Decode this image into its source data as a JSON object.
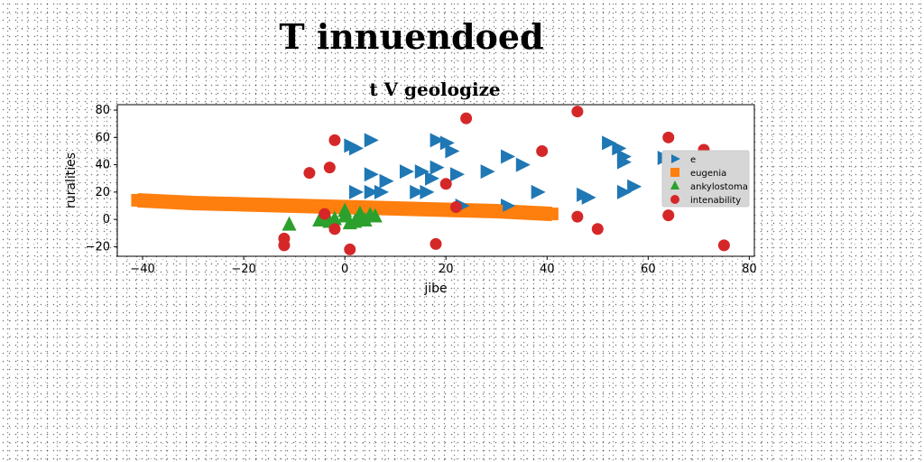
{
  "page_title": "T innuendoed",
  "chart_data": {
    "type": "scatter",
    "title": "t V geologize",
    "xlabel": "jibe",
    "ylabel": "ruralities",
    "xlim": [
      -45,
      81
    ],
    "ylim": [
      -27,
      84
    ],
    "xticks": [
      -40,
      -20,
      0,
      20,
      40,
      60,
      80
    ],
    "yticks": [
      -20,
      0,
      20,
      40,
      60,
      80
    ],
    "xtick_labels": [
      "−40",
      "−20",
      "0",
      "20",
      "40",
      "60",
      "80"
    ],
    "ytick_labels": [
      "−20",
      "0",
      "20",
      "40",
      "60",
      "80"
    ],
    "grid": false,
    "legend_position": "right",
    "series": [
      {
        "name": "e",
        "marker": "triangle-right",
        "color": "#1f77b4",
        "points": [
          [
            1,
            54
          ],
          [
            2,
            52
          ],
          [
            5,
            58
          ],
          [
            18,
            58
          ],
          [
            20,
            56
          ],
          [
            21,
            50
          ],
          [
            2,
            20
          ],
          [
            5,
            20
          ],
          [
            7,
            20
          ],
          [
            5,
            33
          ],
          [
            8,
            28
          ],
          [
            12,
            35
          ],
          [
            15,
            35
          ],
          [
            17,
            30
          ],
          [
            18,
            38
          ],
          [
            22,
            33
          ],
          [
            14,
            20
          ],
          [
            16,
            20
          ],
          [
            23,
            10
          ],
          [
            28,
            35
          ],
          [
            32,
            10
          ],
          [
            32,
            46
          ],
          [
            35,
            40
          ],
          [
            38,
            20
          ],
          [
            47,
            18
          ],
          [
            48,
            16
          ],
          [
            52,
            56
          ],
          [
            54,
            52
          ],
          [
            55,
            42
          ],
          [
            55,
            46
          ],
          [
            55,
            20
          ],
          [
            57,
            24
          ],
          [
            63,
            45
          ],
          [
            66,
            28
          ]
        ]
      },
      {
        "name": "eugenia",
        "marker": "square",
        "color": "#ff7f0e",
        "points": [
          [
            -41,
            14
          ],
          [
            -30,
            12
          ],
          [
            -20,
            11
          ],
          [
            -10,
            10
          ],
          [
            0,
            9
          ],
          [
            10,
            8
          ],
          [
            20,
            7
          ],
          [
            30,
            6
          ],
          [
            41,
            4
          ]
        ]
      },
      {
        "name": "ankylostoma",
        "marker": "triangle-up",
        "color": "#2ca02c",
        "points": [
          [
            -11,
            -4
          ],
          [
            -5,
            -1
          ],
          [
            -4,
            2
          ],
          [
            -3,
            -2
          ],
          [
            -2,
            0
          ],
          [
            0,
            6
          ],
          [
            0,
            2
          ],
          [
            1,
            -3
          ],
          [
            2,
            -2
          ],
          [
            3,
            4
          ],
          [
            3,
            0
          ],
          [
            4,
            -1
          ],
          [
            5,
            3
          ],
          [
            6,
            2
          ]
        ]
      },
      {
        "name": "intenability",
        "marker": "circle",
        "color": "#d62728",
        "points": [
          [
            -12,
            -14
          ],
          [
            -12,
            -19
          ],
          [
            -7,
            34
          ],
          [
            -3,
            38
          ],
          [
            -2,
            58
          ],
          [
            -2,
            -7
          ],
          [
            -4,
            4
          ],
          [
            1,
            -22
          ],
          [
            18,
            -18
          ],
          [
            20,
            26
          ],
          [
            22,
            9
          ],
          [
            24,
            74
          ],
          [
            39,
            50
          ],
          [
            46,
            2
          ],
          [
            46,
            79
          ],
          [
            50,
            -7
          ],
          [
            64,
            3
          ],
          [
            64,
            60
          ],
          [
            71,
            51
          ],
          [
            75,
            -19
          ]
        ]
      }
    ]
  }
}
